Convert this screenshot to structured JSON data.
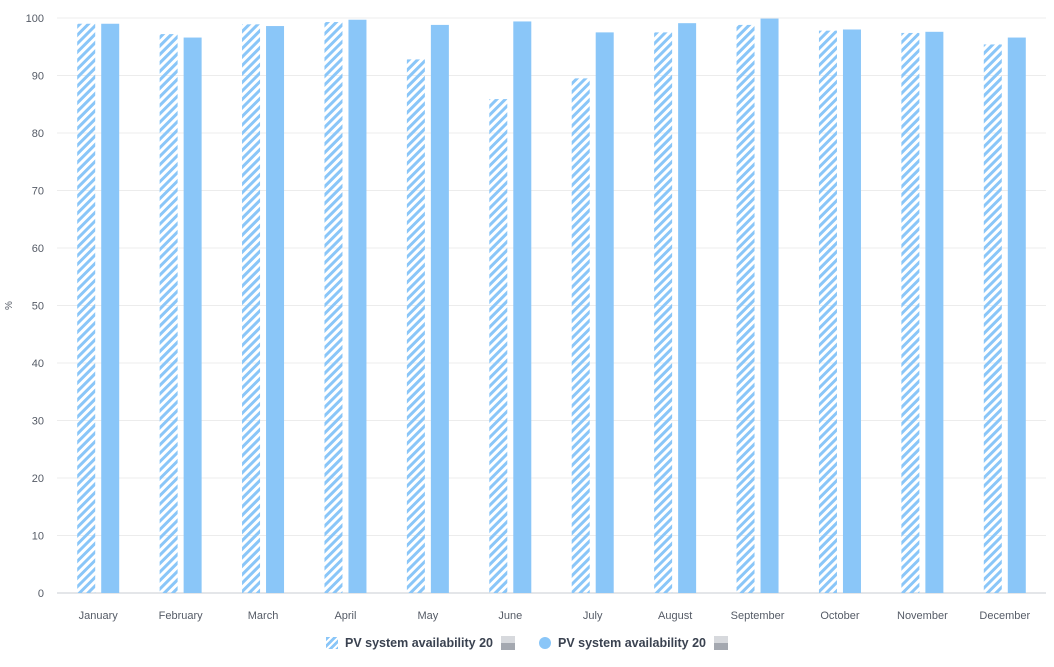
{
  "chart_data": {
    "type": "bar",
    "ylabel": "%",
    "ylim": [
      0,
      100
    ],
    "yticks": [
      "0",
      "10",
      "20",
      "30",
      "40",
      "50",
      "60",
      "70",
      "80",
      "90",
      "100"
    ],
    "grid": true,
    "legend_position": "bottom-center",
    "categories": [
      "January",
      "February",
      "March",
      "April",
      "May",
      "June",
      "July",
      "August",
      "September",
      "October",
      "November",
      "December"
    ],
    "series": [
      {
        "name": "PV system availability 20",
        "style": "hatched",
        "color": "#8ac6f8",
        "values": [
          99.0,
          97.2,
          98.9,
          99.3,
          92.8,
          85.9,
          89.5,
          97.5,
          98.8,
          97.8,
          97.4,
          95.4
        ]
      },
      {
        "name": "PV system availability 20",
        "style": "solid",
        "color": "#8ac6f8",
        "values": [
          99.0,
          96.6,
          98.6,
          99.7,
          98.8,
          99.4,
          97.5,
          99.1,
          99.9,
          98.0,
          97.6,
          96.6
        ]
      }
    ]
  },
  "legend": {
    "items": [
      {
        "label": "PV system availability 20",
        "icon": "hatch-swatch-icon"
      },
      {
        "label": "PV system availability 20",
        "icon": "circle-swatch-icon"
      }
    ]
  },
  "colors": {
    "bar": "#8ac6f8",
    "grid": "#ececec",
    "axis": "#c9cdd3",
    "text": "#555b66"
  }
}
